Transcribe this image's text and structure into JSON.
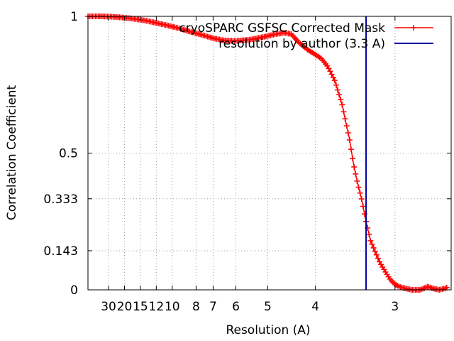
{
  "chart_data": {
    "type": "line",
    "title": "",
    "xlabel": "Resolution (A)",
    "ylabel": "Correlation Coefficient",
    "x_scale": "reciprocal",
    "xlim": [
      85,
      2.55
    ],
    "ylim": [
      0,
      1
    ],
    "x_ticks": [
      {
        "value": 30,
        "label": "30"
      },
      {
        "value": 20,
        "label": "20"
      },
      {
        "value": 15,
        "label": "15"
      },
      {
        "value": 12,
        "label": "12"
      },
      {
        "value": 10,
        "label": "10"
      },
      {
        "value": 8,
        "label": "8"
      },
      {
        "value": 7,
        "label": "7"
      },
      {
        "value": 6,
        "label": "6"
      },
      {
        "value": 5,
        "label": "5"
      },
      {
        "value": 4,
        "label": "4"
      },
      {
        "value": 3,
        "label": "3"
      }
    ],
    "y_ticks": [
      {
        "value": 0,
        "label": "0"
      },
      {
        "value": 0.143,
        "label": "0.143"
      },
      {
        "value": 0.333,
        "label": "0.333"
      },
      {
        "value": 0.5,
        "label": "0.5"
      },
      {
        "value": 1,
        "label": "1"
      }
    ],
    "grid": true,
    "legend_position": "top-right",
    "series": [
      {
        "name": "cryoSPARC GSFSC Corrected Mask",
        "color": "#ff0000",
        "marker": "plus",
        "points": [
          [
            85,
            1.0
          ],
          [
            40,
            1.0
          ],
          [
            25,
            0.998
          ],
          [
            18,
            0.993
          ],
          [
            14,
            0.985
          ],
          [
            11,
            0.97
          ],
          [
            9.5,
            0.958
          ],
          [
            8.5,
            0.945
          ],
          [
            7.5,
            0.93
          ],
          [
            7,
            0.92
          ],
          [
            6.5,
            0.912
          ],
          [
            6,
            0.91
          ],
          [
            5.5,
            0.915
          ],
          [
            5.1,
            0.925
          ],
          [
            4.8,
            0.935
          ],
          [
            4.6,
            0.94
          ],
          [
            4.45,
            0.935
          ],
          [
            4.3,
            0.905
          ],
          [
            4.15,
            0.88
          ],
          [
            4.0,
            0.86
          ],
          [
            3.9,
            0.845
          ],
          [
            3.8,
            0.815
          ],
          [
            3.7,
            0.765
          ],
          [
            3.6,
            0.68
          ],
          [
            3.5,
            0.55
          ],
          [
            3.45,
            0.46
          ],
          [
            3.4,
            0.39
          ],
          [
            3.35,
            0.33
          ],
          [
            3.3,
            0.25
          ],
          [
            3.25,
            0.18
          ],
          [
            3.2,
            0.14
          ],
          [
            3.15,
            0.1
          ],
          [
            3.1,
            0.07
          ],
          [
            3.05,
            0.04
          ],
          [
            3.0,
            0.02
          ],
          [
            2.95,
            0.01
          ],
          [
            2.9,
            0.005
          ],
          [
            2.85,
            0.0
          ],
          [
            2.78,
            0.0
          ],
          [
            2.72,
            0.012
          ],
          [
            2.68,
            0.005
          ],
          [
            2.63,
            0.0
          ],
          [
            2.58,
            0.008
          ]
        ]
      },
      {
        "name": "resolution by author (3.3 A)",
        "color": "#0000a0",
        "type": "vertical-line",
        "x": 3.3
      }
    ]
  }
}
